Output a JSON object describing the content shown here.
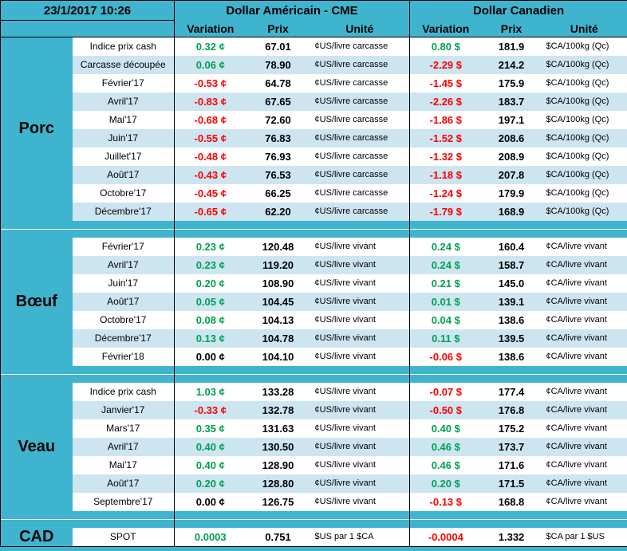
{
  "colors": {
    "teal": "#3FB4CE",
    "stripe": "#CDE5F1",
    "green": "#00A14F",
    "red": "#FF0000"
  },
  "chart_data": {
    "type": "table",
    "title": "23/1/2017 10:26",
    "groups": [
      {
        "label": "Dollar Américain - CME",
        "columns": [
          "Variation",
          "Prix",
          "Unité"
        ]
      },
      {
        "label": "Dollar Canadien",
        "columns": [
          "Variation",
          "Prix",
          "Unité"
        ]
      }
    ],
    "sections": [
      {
        "name": "Porc",
        "rows": [
          {
            "label": "Indice prix cash",
            "us_var": "0.32 ¢",
            "us_prix": "67.01",
            "us_unit": "¢US/livre carcasse",
            "ca_var": "0.80 $",
            "ca_prix": "181.9",
            "ca_unit": "$CA/100kg (Qc)"
          },
          {
            "label": "Carcasse découpée",
            "us_var": "0.06 ¢",
            "us_prix": "78.90",
            "us_unit": "¢US/livre carcasse",
            "ca_var": "-2.29 $",
            "ca_prix": "214.2",
            "ca_unit": "$CA/100kg (Qc)"
          },
          {
            "label": "Février'17",
            "us_var": "-0.53 ¢",
            "us_prix": "64.78",
            "us_unit": "¢US/livre carcasse",
            "ca_var": "-1.45 $",
            "ca_prix": "175.9",
            "ca_unit": "$CA/100kg (Qc)"
          },
          {
            "label": "Avril'17",
            "us_var": "-0.83 ¢",
            "us_prix": "67.65",
            "us_unit": "¢US/livre carcasse",
            "ca_var": "-2.26 $",
            "ca_prix": "183.7",
            "ca_unit": "$CA/100kg (Qc)"
          },
          {
            "label": "Mai'17",
            "us_var": "-0.68 ¢",
            "us_prix": "72.60",
            "us_unit": "¢US/livre carcasse",
            "ca_var": "-1.86 $",
            "ca_prix": "197.1",
            "ca_unit": "$CA/100kg (Qc)"
          },
          {
            "label": "Juin'17",
            "us_var": "-0.55 ¢",
            "us_prix": "76.83",
            "us_unit": "¢US/livre carcasse",
            "ca_var": "-1.52 $",
            "ca_prix": "208.6",
            "ca_unit": "$CA/100kg (Qc)"
          },
          {
            "label": "Juillet'17",
            "us_var": "-0.48 ¢",
            "us_prix": "76.93",
            "us_unit": "¢US/livre carcasse",
            "ca_var": "-1.32 $",
            "ca_prix": "208.9",
            "ca_unit": "$CA/100kg (Qc)"
          },
          {
            "label": "Août'17",
            "us_var": "-0.43 ¢",
            "us_prix": "76.53",
            "us_unit": "¢US/livre carcasse",
            "ca_var": "-1.18 $",
            "ca_prix": "207.8",
            "ca_unit": "$CA/100kg (Qc)"
          },
          {
            "label": "Octobre'17",
            "us_var": "-0.45 ¢",
            "us_prix": "66.25",
            "us_unit": "¢US/livre carcasse",
            "ca_var": "-1.24 $",
            "ca_prix": "179.9",
            "ca_unit": "$CA/100kg (Qc)"
          },
          {
            "label": "Décembre'17",
            "us_var": "-0.65 ¢",
            "us_prix": "62.20",
            "us_unit": "¢US/livre carcasse",
            "ca_var": "-1.79 $",
            "ca_prix": "168.9",
            "ca_unit": "$CA/100kg (Qc)"
          }
        ]
      },
      {
        "name": "Bœuf",
        "rows": [
          {
            "label": "Février'17",
            "us_var": "0.23 ¢",
            "us_prix": "120.48",
            "us_unit": "¢US/livre vivant",
            "ca_var": "0.24 $",
            "ca_prix": "160.4",
            "ca_unit": "¢CA/livre vivant"
          },
          {
            "label": "Avril'17",
            "us_var": "0.23 ¢",
            "us_prix": "119.20",
            "us_unit": "¢US/livre vivant",
            "ca_var": "0.24 $",
            "ca_prix": "158.7",
            "ca_unit": "¢CA/livre vivant"
          },
          {
            "label": "Juin'17",
            "us_var": "0.20 ¢",
            "us_prix": "108.90",
            "us_unit": "¢US/livre vivant",
            "ca_var": "0.21 $",
            "ca_prix": "145.0",
            "ca_unit": "¢CA/livre vivant"
          },
          {
            "label": "Août'17",
            "us_var": "0.05 ¢",
            "us_prix": "104.45",
            "us_unit": "¢US/livre vivant",
            "ca_var": "0.01 $",
            "ca_prix": "139.1",
            "ca_unit": "¢CA/livre vivant"
          },
          {
            "label": "Octobre'17",
            "us_var": "0.08 ¢",
            "us_prix": "104.13",
            "us_unit": "¢US/livre vivant",
            "ca_var": "0.04 $",
            "ca_prix": "138.6",
            "ca_unit": "¢CA/livre vivant"
          },
          {
            "label": "Décembre'17",
            "us_var": "0.13 ¢",
            "us_prix": "104.78",
            "us_unit": "¢US/livre vivant",
            "ca_var": "0.11 $",
            "ca_prix": "139.5",
            "ca_unit": "¢CA/livre vivant"
          },
          {
            "label": "Février'18",
            "us_var": "0.00 ¢",
            "us_prix": "104.10",
            "us_unit": "¢US/livre vivant",
            "ca_var": "-0.06 $",
            "ca_prix": "138.6",
            "ca_unit": "¢CA/livre vivant"
          }
        ]
      },
      {
        "name": "Veau",
        "rows": [
          {
            "label": "Indice prix cash",
            "us_var": "1.03 ¢",
            "us_prix": "133.28",
            "us_unit": "¢US/livre vivant",
            "ca_var": "-0.07 $",
            "ca_prix": "177.4",
            "ca_unit": "¢CA/livre vivant"
          },
          {
            "label": "Janvier'17",
            "us_var": "-0.33 ¢",
            "us_prix": "132.78",
            "us_unit": "¢US/livre vivant",
            "ca_var": "-0.50 $",
            "ca_prix": "176.8",
            "ca_unit": "¢CA/livre vivant"
          },
          {
            "label": "Mars'17",
            "us_var": "0.35 ¢",
            "us_prix": "131.63",
            "us_unit": "¢US/livre vivant",
            "ca_var": "0.40 $",
            "ca_prix": "175.2",
            "ca_unit": "¢CA/livre vivant"
          },
          {
            "label": "Avril'17",
            "us_var": "0.40 ¢",
            "us_prix": "130.50",
            "us_unit": "¢US/livre vivant",
            "ca_var": "0.46 $",
            "ca_prix": "173.7",
            "ca_unit": "¢CA/livre vivant"
          },
          {
            "label": "Mai'17",
            "us_var": "0.40 ¢",
            "us_prix": "128.90",
            "us_unit": "¢US/livre vivant",
            "ca_var": "0.46 $",
            "ca_prix": "171.6",
            "ca_unit": "¢CA/livre vivant"
          },
          {
            "label": "Août'17",
            "us_var": "0.20 ¢",
            "us_prix": "128.80",
            "us_unit": "¢US/livre vivant",
            "ca_var": "0.20 $",
            "ca_prix": "171.5",
            "ca_unit": "¢CA/livre vivant"
          },
          {
            "label": "Septembre'17",
            "us_var": "0.00 ¢",
            "us_prix": "126.75",
            "us_unit": "¢US/livre vivant",
            "ca_var": "-0.13 $",
            "ca_prix": "168.8",
            "ca_unit": "¢CA/livre vivant"
          }
        ]
      },
      {
        "name": "CAD",
        "rows": [
          {
            "label": "SPOT",
            "us_var": "0.0003",
            "us_prix": "0.751",
            "us_unit": "$US par 1 $CA",
            "ca_var": "-0.0004",
            "ca_prix": "1.332",
            "ca_unit": "$CA par 1 $US"
          }
        ]
      }
    ]
  }
}
